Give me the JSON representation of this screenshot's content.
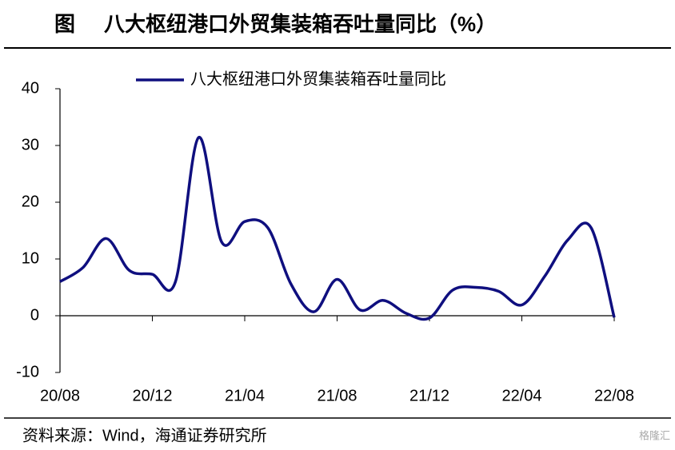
{
  "figure_label": "图",
  "source": "资料来源：Wind，海通证券研究所",
  "watermark": "格隆汇",
  "chart_data": {
    "type": "line",
    "title": "八大枢纽港口外贸集装箱吞吐量同比（%）",
    "categories": [
      "20/08",
      null,
      null,
      null,
      "20/12",
      null,
      null,
      null,
      "21/04",
      null,
      null,
      null,
      "21/08",
      null,
      null,
      null,
      "21/12",
      null,
      null,
      null,
      "22/04",
      null,
      null,
      null,
      "22/08"
    ],
    "series": [
      {
        "name": "八大枢纽港口外贸集装箱吞吐量同比",
        "color": "#0f0f7f",
        "values": [
          6,
          8.5,
          13.6,
          8,
          7.3,
          6,
          31.4,
          13,
          16.6,
          15.5,
          5.6,
          0.7,
          6.4,
          1,
          2.7,
          0.4,
          -0.4,
          4.5,
          5,
          4.3,
          1.9,
          7,
          13.4,
          15.5,
          -0.3
        ]
      }
    ],
    "ylim": [
      -10,
      40
    ],
    "yticks": [
      -10,
      0,
      10,
      20,
      30,
      40
    ],
    "legend": "top"
  }
}
